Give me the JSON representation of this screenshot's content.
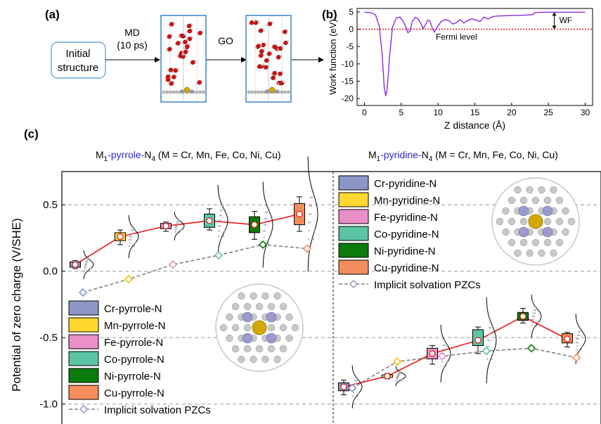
{
  "panels": {
    "a": {
      "label": "(a)",
      "initial_box": [
        "Initial",
        "structure"
      ],
      "md_label": [
        "MD",
        "(10 ps)"
      ],
      "go_label": "GO"
    },
    "b": {
      "label": "(b)"
    },
    "c": {
      "label": "(c)",
      "left_title": {
        "prefix": "M",
        "sub": "1",
        "mid": "-pyrrole-",
        "suffix": "N",
        "sub2": "4",
        "tail": " (M = Cr, Mn, Fe, Co, Ni, Cu)"
      },
      "right_title": {
        "prefix": "M",
        "sub": "1",
        "mid": "-pyridine-",
        "suffix": "N",
        "sub2": "4",
        "tail": " (M = Cr, Mn, Fe, Co, Ni, Cu)"
      }
    }
  },
  "chart_data": [
    {
      "id": "work-function",
      "type": "line",
      "xlabel": "Z distance (Å)",
      "ylabel": "Work function (eV)",
      "xlim": [
        -1,
        31
      ],
      "ylim": [
        -22,
        6
      ],
      "xticks": [
        0,
        5,
        10,
        15,
        20,
        25,
        30
      ],
      "yticks": [
        5,
        0,
        -5,
        -10,
        -15,
        -20
      ],
      "series": [
        {
          "x": [
            0,
            0.8,
            1.5,
            2.0,
            2.4,
            2.7,
            2.9,
            3.1,
            3.4,
            3.8,
            4.3,
            4.8,
            5.2,
            5.6,
            5.9,
            6.2,
            6.5,
            6.9,
            7.3,
            7.7,
            8.0,
            8.3,
            8.6,
            8.9,
            9.2,
            9.5,
            9.9,
            10.4,
            11.0,
            11.5,
            12.0,
            12.5,
            13.0,
            13.5,
            14.0,
            14.6,
            15.2,
            15.7,
            16.2,
            16.8,
            17.4,
            18.0,
            19.0,
            20.0,
            21.0,
            22.0,
            22.8,
            23.2,
            24.0,
            26.0,
            28.0,
            30.0
          ],
          "y": [
            4.9,
            4.8,
            4.2,
            1.0,
            -7.0,
            -17.0,
            -19.3,
            -17.0,
            -8.0,
            0.5,
            3.2,
            3.5,
            2.5,
            0.8,
            -1.0,
            -0.5,
            2.2,
            3.4,
            3.0,
            1.5,
            0.2,
            1.4,
            2.6,
            2.4,
            0.4,
            -0.8,
            0.6,
            2.2,
            2.8,
            2.5,
            1.5,
            1.9,
            2.8,
            1.8,
            2.5,
            3.0,
            2.6,
            2.2,
            3.5,
            3.0,
            3.6,
            3.8,
            3.9,
            4.0,
            4.0,
            4.1,
            4.2,
            4.8,
            4.9,
            4.9,
            4.9,
            4.9
          ]
        }
      ],
      "annotations": {
        "fermi_level": "Fermi level",
        "wf": "WF"
      }
    },
    {
      "id": "pzc",
      "type": "box",
      "ylabel": "Potential of zero charge (V/SHE)",
      "ylim": [
        -1.15,
        0.75
      ],
      "yticks": [
        0.5,
        0.0,
        -0.5,
        -1.0
      ],
      "ytick_labels": [
        "0.5",
        "0.0",
        "-0.5",
        "-1.0"
      ],
      "gridlines": [
        0.5,
        0.0,
        -0.5,
        -1.0
      ],
      "colors": [
        "#8c96c6",
        "#fed82f",
        "#ec8ec8",
        "#5bc4a4",
        "#0c7a0c",
        "#f48c5c"
      ],
      "metals": [
        "Cr",
        "Mn",
        "Fe",
        "Co",
        "Ni",
        "Cu"
      ],
      "groups": [
        {
          "name": "pyrrole",
          "legend": [
            "Cr-pyrrole-N",
            "Mn-pyrrole-N",
            "Fe-pyrrole-N",
            "Co-pyrrole-N",
            "Ni-pyrrole-N",
            "Cu-pyrrole-N",
            "Implicit solvation PZCs"
          ],
          "aimd_mean": [
            0.05,
            0.26,
            0.34,
            0.38,
            0.35,
            0.43
          ],
          "box": [
            [
              0.03,
              0.07
            ],
            [
              0.23,
              0.29
            ],
            [
              0.32,
              0.36
            ],
            [
              0.33,
              0.43
            ],
            [
              0.29,
              0.41
            ],
            [
              0.35,
              0.51
            ]
          ],
          "whisker": [
            [
              0.02,
              0.08
            ],
            [
              0.2,
              0.31
            ],
            [
              0.3,
              0.37
            ],
            [
              0.31,
              0.47
            ],
            [
              0.24,
              0.45
            ],
            [
              0.3,
              0.56
            ]
          ],
          "implicit": [
            -0.16,
            -0.06,
            0.05,
            0.12,
            0.2,
            0.17
          ]
        },
        {
          "name": "pyridine",
          "legend": [
            "Cr-pyridine-N",
            "Mn-pyridine-N",
            "Fe-pyridine-N",
            "Co-pyridine-N",
            "Ni-pyridine-N",
            "Cu-pyridine-N",
            "Implicit solvation PZCs"
          ],
          "aimd_mean": [
            -0.87,
            -0.79,
            -0.62,
            -0.52,
            -0.34,
            -0.51
          ],
          "box": [
            [
              -0.9,
              -0.84
            ],
            [
              -0.8,
              -0.78
            ],
            [
              -0.66,
              -0.58
            ],
            [
              -0.56,
              -0.44
            ],
            [
              -0.37,
              -0.31
            ],
            [
              -0.54,
              -0.47
            ]
          ],
          "whisker": [
            [
              -0.93,
              -0.82
            ],
            [
              -0.81,
              -0.77
            ],
            [
              -0.7,
              -0.56
            ],
            [
              -0.62,
              -0.42
            ],
            [
              -0.39,
              -0.28
            ],
            [
              -0.57,
              -0.46
            ]
          ],
          "implicit": [
            -0.88,
            -0.68,
            -0.64,
            -0.6,
            -0.58,
            -0.65
          ]
        }
      ]
    }
  ]
}
